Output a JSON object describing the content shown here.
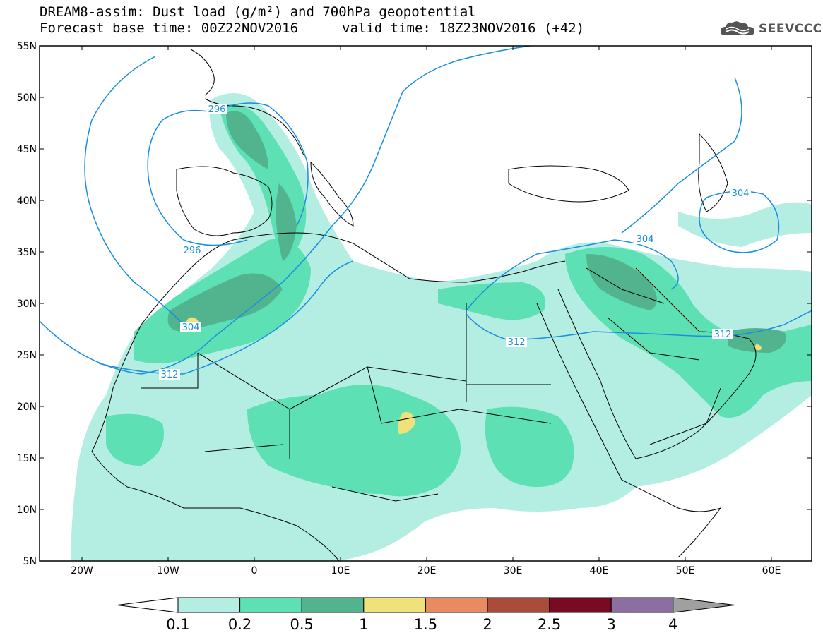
{
  "header": {
    "line1": "DREAM8-assim: Dust load (g/m²) and 700hPa geopotential",
    "base_time": "Forecast base time: 00Z22NOV2016",
    "valid_time": "valid time: 18Z23NOV2016 (+42)"
  },
  "logo": {
    "icon": "cloud-logo-icon",
    "text": "SEEVCCC"
  },
  "axes": {
    "lat_labels": [
      "55N",
      "50N",
      "45N",
      "40N",
      "35N",
      "30N",
      "25N",
      "20N",
      "15N",
      "10N",
      "5N"
    ],
    "lon_labels": [
      "20W",
      "10W",
      "0",
      "10E",
      "20E",
      "30E",
      "40E",
      "50E",
      "60E"
    ]
  },
  "contours": {
    "color": "#1a8fe0",
    "labels": [
      "296",
      "296",
      "304",
      "304",
      "304",
      "312",
      "312",
      "312"
    ]
  },
  "colorbar": {
    "colors": [
      "#ffffff",
      "#b4eee2",
      "#5de0b4",
      "#52b48f",
      "#f0e27a",
      "#e88a62",
      "#a94c3c",
      "#780a22",
      "#8c6fa0",
      "#a0a0a0"
    ],
    "labels": [
      "0.1",
      "0.2",
      "0.5",
      "1",
      "1.5",
      "2",
      "2.5",
      "3",
      "4"
    ]
  },
  "dust_colors": {
    "low": "#b4eee2",
    "mid": "#5de0b4",
    "high": "#52b48f",
    "peak": "#f0e27a"
  }
}
